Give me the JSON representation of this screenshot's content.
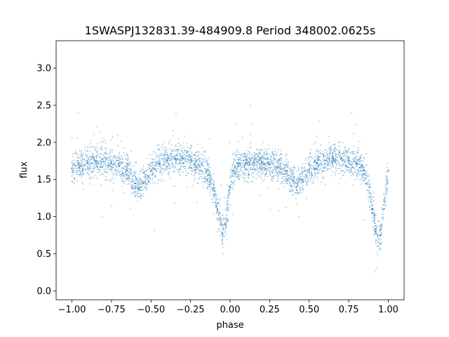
{
  "chart_data": {
    "type": "scatter",
    "title": "1SWASPJ132831.39-484909.8 Period 348002.0625s",
    "xlabel": "phase",
    "ylabel": "flux",
    "xlim": [
      -1.1,
      1.1
    ],
    "ylim": [
      -0.12,
      3.37
    ],
    "xticks": [
      -1.0,
      -0.75,
      -0.5,
      -0.25,
      0.0,
      0.25,
      0.5,
      0.75,
      1.0
    ],
    "xtick_labels": [
      "−1.00",
      "−0.75",
      "−0.50",
      "−0.25",
      "0.00",
      "0.25",
      "0.50",
      "0.75",
      "1.00"
    ],
    "yticks": [
      0.0,
      0.5,
      1.0,
      1.5,
      2.0,
      2.5,
      3.0
    ],
    "ytick_labels": [
      "0.0",
      "0.5",
      "1.0",
      "1.5",
      "2.0",
      "2.5",
      "3.0"
    ],
    "grid": false,
    "marker_color": "#1f77b4",
    "series": [
      {
        "x": [
          -1.0,
          -0.95,
          -0.9,
          -0.85,
          -0.8,
          -0.75,
          -0.7,
          -0.65,
          -0.6,
          -0.58,
          -0.55,
          -0.5,
          -0.45,
          -0.4,
          -0.35,
          -0.3,
          -0.25,
          -0.2,
          -0.15,
          -0.1,
          -0.08,
          -0.05,
          -0.03,
          0.0,
          0.02,
          0.05,
          0.1,
          0.15,
          0.2,
          0.25,
          0.3,
          0.35,
          0.4,
          0.42,
          0.45,
          0.5,
          0.55,
          0.6,
          0.65,
          0.7,
          0.75,
          0.8,
          0.85,
          0.88,
          0.9,
          0.92,
          0.95,
          0.97,
          1.0
        ],
        "y": [
          1.65,
          1.68,
          1.72,
          1.75,
          1.74,
          1.72,
          1.68,
          1.62,
          1.45,
          1.38,
          1.45,
          1.62,
          1.72,
          1.76,
          1.78,
          1.78,
          1.76,
          1.7,
          1.62,
          1.35,
          1.1,
          0.78,
          0.9,
          1.4,
          1.62,
          1.68,
          1.72,
          1.74,
          1.73,
          1.7,
          1.67,
          1.62,
          1.48,
          1.4,
          1.5,
          1.64,
          1.72,
          1.76,
          1.78,
          1.78,
          1.76,
          1.72,
          1.62,
          1.4,
          1.1,
          0.8,
          0.75,
          1.1,
          1.62
        ]
      }
    ]
  }
}
